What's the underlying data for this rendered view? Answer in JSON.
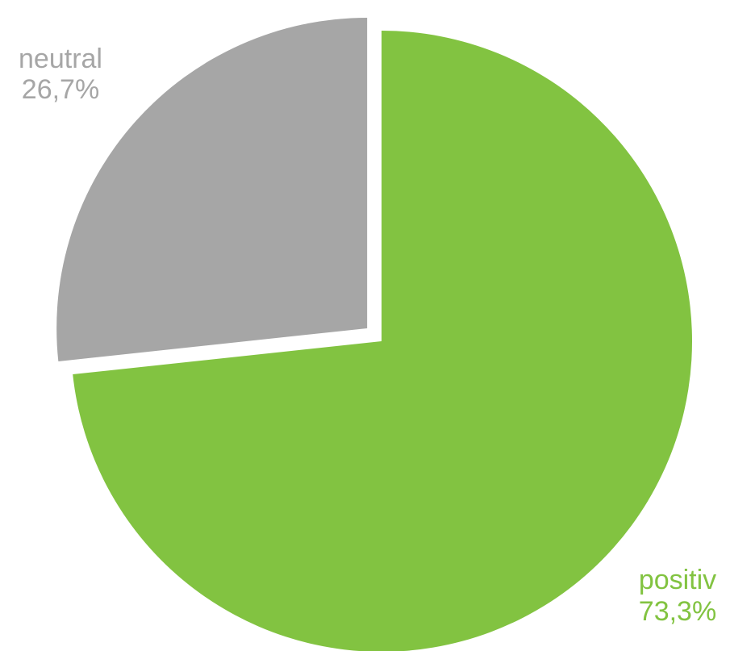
{
  "chart_data": {
    "type": "pie",
    "title": "",
    "slices": [
      {
        "label": "positiv",
        "value": 73.3,
        "value_label": "73,3%",
        "color": "#82c341",
        "exploded": false
      },
      {
        "label": "neutral",
        "value": 26.7,
        "value_label": "26,7%",
        "color": "#a6a6a6",
        "exploded": true
      }
    ],
    "start_angle": "12 o'clock, clockwise",
    "legend": "none",
    "labels": "outside, name and percentage"
  }
}
